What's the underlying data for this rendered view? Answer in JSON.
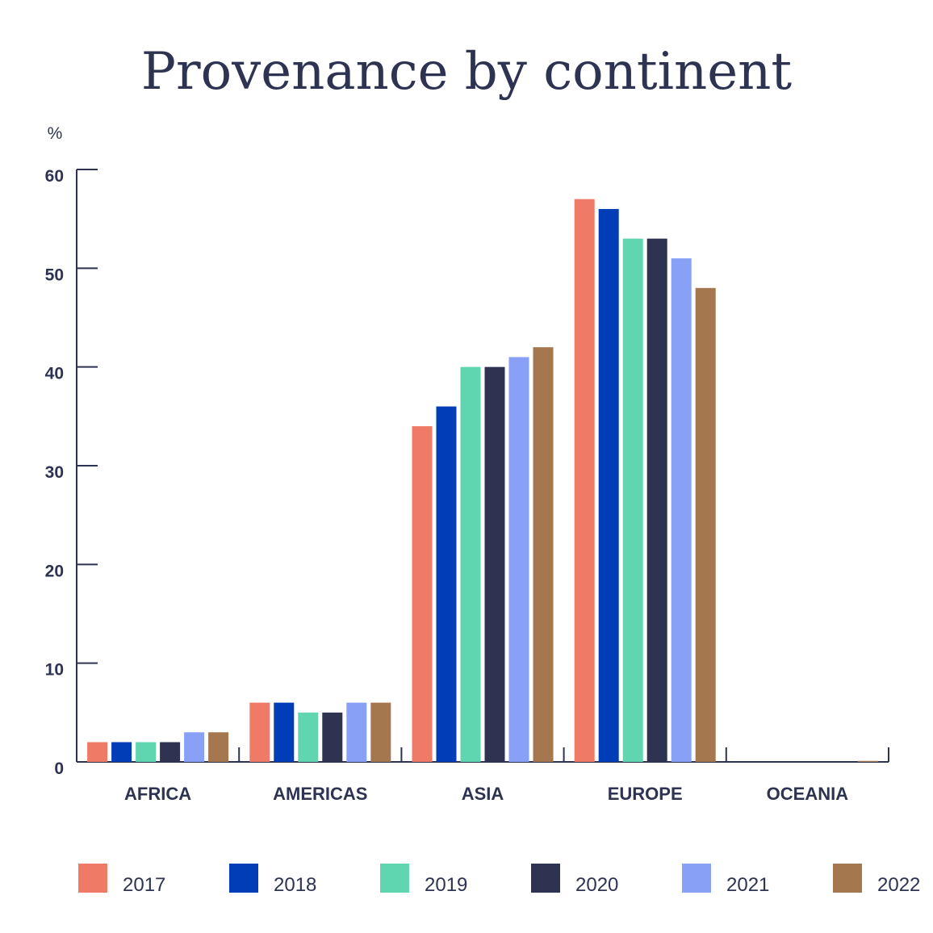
{
  "chart_data": {
    "type": "bar",
    "title": "Provenance by continent",
    "ylabel": "%",
    "xlabel": "",
    "ylim": [
      0,
      60
    ],
    "yticks": [
      "0",
      "10",
      "20",
      "30",
      "40",
      "50",
      "60"
    ],
    "categories": [
      "AFRICA",
      "AMERICAS",
      "ASIA",
      "EUROPE",
      "OCEANIA"
    ],
    "legend_position": "bottom",
    "grid": false,
    "series": [
      {
        "name": "2017",
        "color": "#ef7b67",
        "values": [
          2,
          6,
          34,
          57,
          0
        ]
      },
      {
        "name": "2018",
        "color": "#003db6",
        "values": [
          2,
          6,
          36,
          56,
          0
        ]
      },
      {
        "name": "2019",
        "color": "#5fd6b0",
        "values": [
          2,
          5,
          40,
          53,
          0
        ]
      },
      {
        "name": "2020",
        "color": "#2d3350",
        "values": [
          2,
          5,
          40,
          53,
          0
        ]
      },
      {
        "name": "2021",
        "color": "#88a1f7",
        "values": [
          3,
          6,
          41,
          51,
          0
        ]
      },
      {
        "name": "2022",
        "color": "#a5774e",
        "values": [
          3,
          6,
          42,
          48,
          0.1
        ]
      }
    ]
  }
}
